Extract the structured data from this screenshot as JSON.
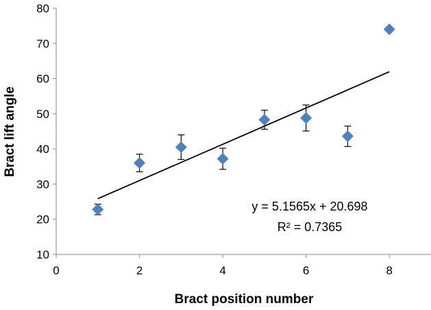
{
  "chart_data": {
    "type": "scatter",
    "xlabel": "Bract position number",
    "ylabel": "Bract lift angle",
    "xlim": [
      0,
      9
    ],
    "ylim": [
      10,
      80
    ],
    "x_ticks": [
      0,
      2,
      4,
      6,
      8
    ],
    "y_ticks": [
      10,
      20,
      30,
      40,
      50,
      60,
      70,
      80
    ],
    "grid": false,
    "marker": "diamond",
    "marker_color": "#4f81bd",
    "points": [
      {
        "x": 1,
        "y": 22.8,
        "err": 1.5
      },
      {
        "x": 2,
        "y": 36.0,
        "err": 2.5
      },
      {
        "x": 3,
        "y": 40.5,
        "err": 3.5
      },
      {
        "x": 4,
        "y": 37.2,
        "err": 3.0
      },
      {
        "x": 5,
        "y": 48.3,
        "err": 2.7
      },
      {
        "x": 6,
        "y": 48.8,
        "err": 3.7
      },
      {
        "x": 7,
        "y": 43.6,
        "err": 2.9
      },
      {
        "x": 8,
        "y": 74.0,
        "err": 0
      }
    ],
    "trendline": {
      "type": "linear",
      "slope": 5.1565,
      "intercept": 20.698,
      "x_range": [
        1,
        8
      ],
      "color": "#000000"
    },
    "annotations": {
      "equation": "y = 5.1565x + 20.698",
      "r_squared": "R² = 0.7365"
    }
  }
}
